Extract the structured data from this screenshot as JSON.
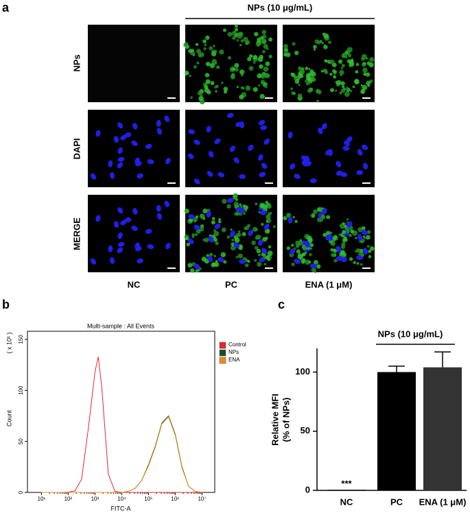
{
  "panel_a": {
    "label": "a",
    "header": "NPs (10 μg/mL)",
    "rows": [
      "NPs",
      "DAPI",
      "MERGE"
    ],
    "columns": [
      "NC",
      "PC",
      "ENA (1 μM)"
    ]
  },
  "chart_data": [
    {
      "type": "line",
      "panel_label": "b",
      "title": "Multi-sample : All Events",
      "x_label": "FITC-A",
      "y_label": "Count",
      "y_multiplier": "( x 10¹ )",
      "log_x": true,
      "xlim": [
        3,
        30000000
      ],
      "xticks": [
        {
          "value": 10,
          "label": "10¹"
        },
        {
          "value": 100,
          "label": "10²"
        },
        {
          "value": 1000,
          "label": "10³"
        },
        {
          "value": 10000,
          "label": "10⁴"
        },
        {
          "value": 100000,
          "label": "10⁵"
        },
        {
          "value": 1000000,
          "label": "10⁶"
        },
        {
          "value": 10000000,
          "label": "10⁷"
        }
      ],
      "ylim": [
        0,
        158
      ],
      "yticks": [
        0,
        50,
        100,
        150
      ],
      "legend": "right",
      "x": [
        10,
        17.8,
        31.6,
        56.2,
        100,
        178,
        316,
        562,
        1000,
        1330,
        1780,
        3160,
        5620,
        10000,
        17800,
        31600,
        56200,
        100000,
        178000,
        316000,
        562000,
        1000000,
        1780000,
        3160000,
        5620000,
        10000000
      ],
      "series": [
        {
          "name": "Control",
          "color": "#e8252a",
          "values": [
            0,
            0,
            0,
            0,
            0.3,
            1.5,
            13,
            62,
            118,
            133,
            104,
            18,
            1,
            0,
            0,
            0,
            0,
            0,
            0,
            0,
            0,
            0,
            0,
            0,
            0,
            0
          ]
        },
        {
          "name": "NPs",
          "color": "#1d4d1d",
          "values": [
            0,
            0,
            0,
            0,
            0,
            0,
            0,
            0,
            0,
            0,
            0,
            0,
            0,
            0,
            1,
            4,
            12,
            27,
            45,
            68,
            75,
            57,
            25,
            6,
            1,
            0
          ]
        },
        {
          "name": "ENA",
          "color": "#f08a1c",
          "values": [
            0,
            0,
            0,
            0,
            0,
            0,
            0,
            0,
            0,
            0,
            0,
            0,
            0,
            0,
            1,
            4,
            12,
            26,
            44,
            67,
            74,
            56,
            24,
            6,
            1,
            0
          ]
        }
      ]
    },
    {
      "type": "bar",
      "panel_label": "c",
      "y_label": [
        "Relative MFI",
        "(% of NPs)"
      ],
      "group_label": "NPs (10 μg/mL)",
      "categories": [
        "NC",
        "PC",
        "ENA (1 μM)"
      ],
      "values": [
        0.5,
        100,
        104
      ],
      "errors": [
        0,
        5,
        13
      ],
      "colors": [
        "#000000",
        "#000000",
        "#333333"
      ],
      "significance": [
        "***",
        null,
        null
      ],
      "ylim": [
        0,
        120
      ],
      "yticks": [
        0,
        50,
        100
      ]
    }
  ]
}
